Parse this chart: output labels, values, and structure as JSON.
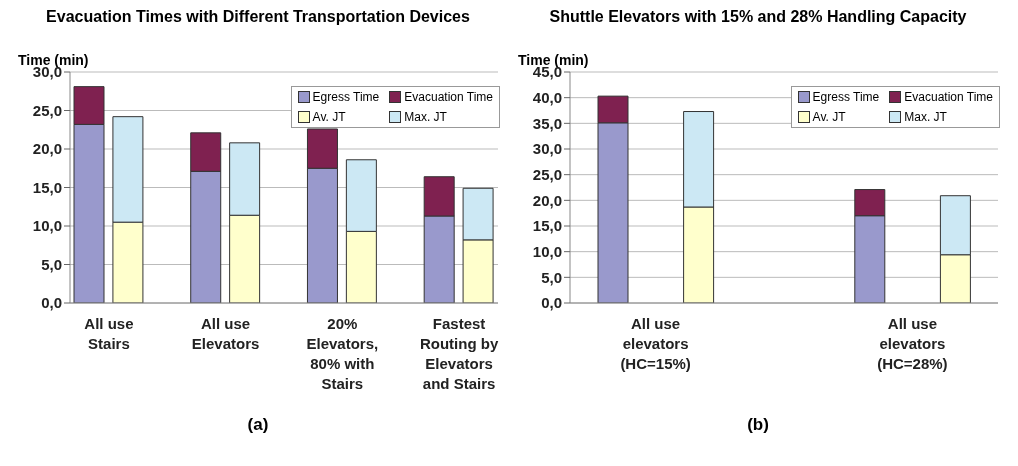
{
  "chart_data": [
    {
      "type": "bar",
      "title": "Evacuation Times with Different Transportation Devices",
      "ylabel": "Time (min)",
      "stacked": true,
      "categories": [
        "All use Stairs",
        null,
        null,
        "All use Elevators",
        null,
        null,
        "20% Elevators, 80% with Stairs",
        null,
        null,
        "Fastest Routing by Elevators and Stairs",
        null
      ],
      "series": [
        {
          "name": "Egress Time",
          "color": "#9999cc",
          "values": [
            23.2,
            null,
            null,
            17.1,
            null,
            null,
            17.5,
            null,
            null,
            11.3,
            null
          ]
        },
        {
          "name": "Evacuation Time",
          "color": "#7f2150",
          "values": [
            4.9,
            null,
            null,
            5.0,
            null,
            null,
            5.1,
            null,
            null,
            5.1,
            null
          ]
        },
        {
          "name": "Av. JT",
          "color": "#ffffcc",
          "values": [
            null,
            10.5,
            null,
            null,
            11.4,
            null,
            null,
            9.3,
            null,
            null,
            8.2
          ]
        },
        {
          "name": "Max. JT",
          "color": "#cce8f4",
          "values": [
            null,
            13.7,
            null,
            null,
            9.4,
            null,
            null,
            9.3,
            null,
            null,
            6.7
          ]
        }
      ],
      "ylim": [
        0,
        30
      ],
      "yticks": [
        {
          "value": 0,
          "label": "0,0"
        },
        {
          "value": 5,
          "label": "5,0"
        },
        {
          "value": 10,
          "label": "10,0"
        },
        {
          "value": 15,
          "label": "15,0"
        },
        {
          "value": 20,
          "label": "20,0"
        },
        {
          "value": 25,
          "label": "25,0"
        },
        {
          "value": 30,
          "label": "30,0"
        }
      ],
      "grid": "y",
      "legend": "top right",
      "annotations": [
        "(a)"
      ]
    },
    {
      "type": "bar",
      "title": "Shuttle Elevators with 15% and 28% Handling Capacity",
      "ylabel": "Time (min)",
      "stacked": true,
      "categories": [
        "All use elevators (HC=15%)",
        null,
        null,
        "All use elevators (HC=28%)",
        null
      ],
      "series": [
        {
          "name": "Egress Time",
          "color": "#9999cc",
          "values": [
            35.1,
            null,
            null,
            17.0,
            null
          ]
        },
        {
          "name": "Evacuation Time",
          "color": "#7f2150",
          "values": [
            5.2,
            null,
            null,
            5.1,
            null
          ]
        },
        {
          "name": "Av. JT",
          "color": "#ffffcc",
          "values": [
            null,
            18.7,
            null,
            null,
            9.4
          ]
        },
        {
          "name": "Max. JT",
          "color": "#cce8f4",
          "values": [
            null,
            18.6,
            null,
            null,
            11.5
          ]
        }
      ],
      "ylim": [
        0,
        45
      ],
      "yticks": [
        {
          "value": 0,
          "label": "0,0"
        },
        {
          "value": 5,
          "label": "5,0"
        },
        {
          "value": 10,
          "label": "10,0"
        },
        {
          "value": 15,
          "label": "15,0"
        },
        {
          "value": 20,
          "label": "20,0"
        },
        {
          "value": 25,
          "label": "25,0"
        },
        {
          "value": 30,
          "label": "30,0"
        },
        {
          "value": 35,
          "label": "35,0"
        },
        {
          "value": 40,
          "label": "40,0"
        },
        {
          "value": 45,
          "label": "45,0"
        }
      ],
      "grid": "y",
      "legend": "top right",
      "annotations": [
        "(b)"
      ]
    }
  ]
}
